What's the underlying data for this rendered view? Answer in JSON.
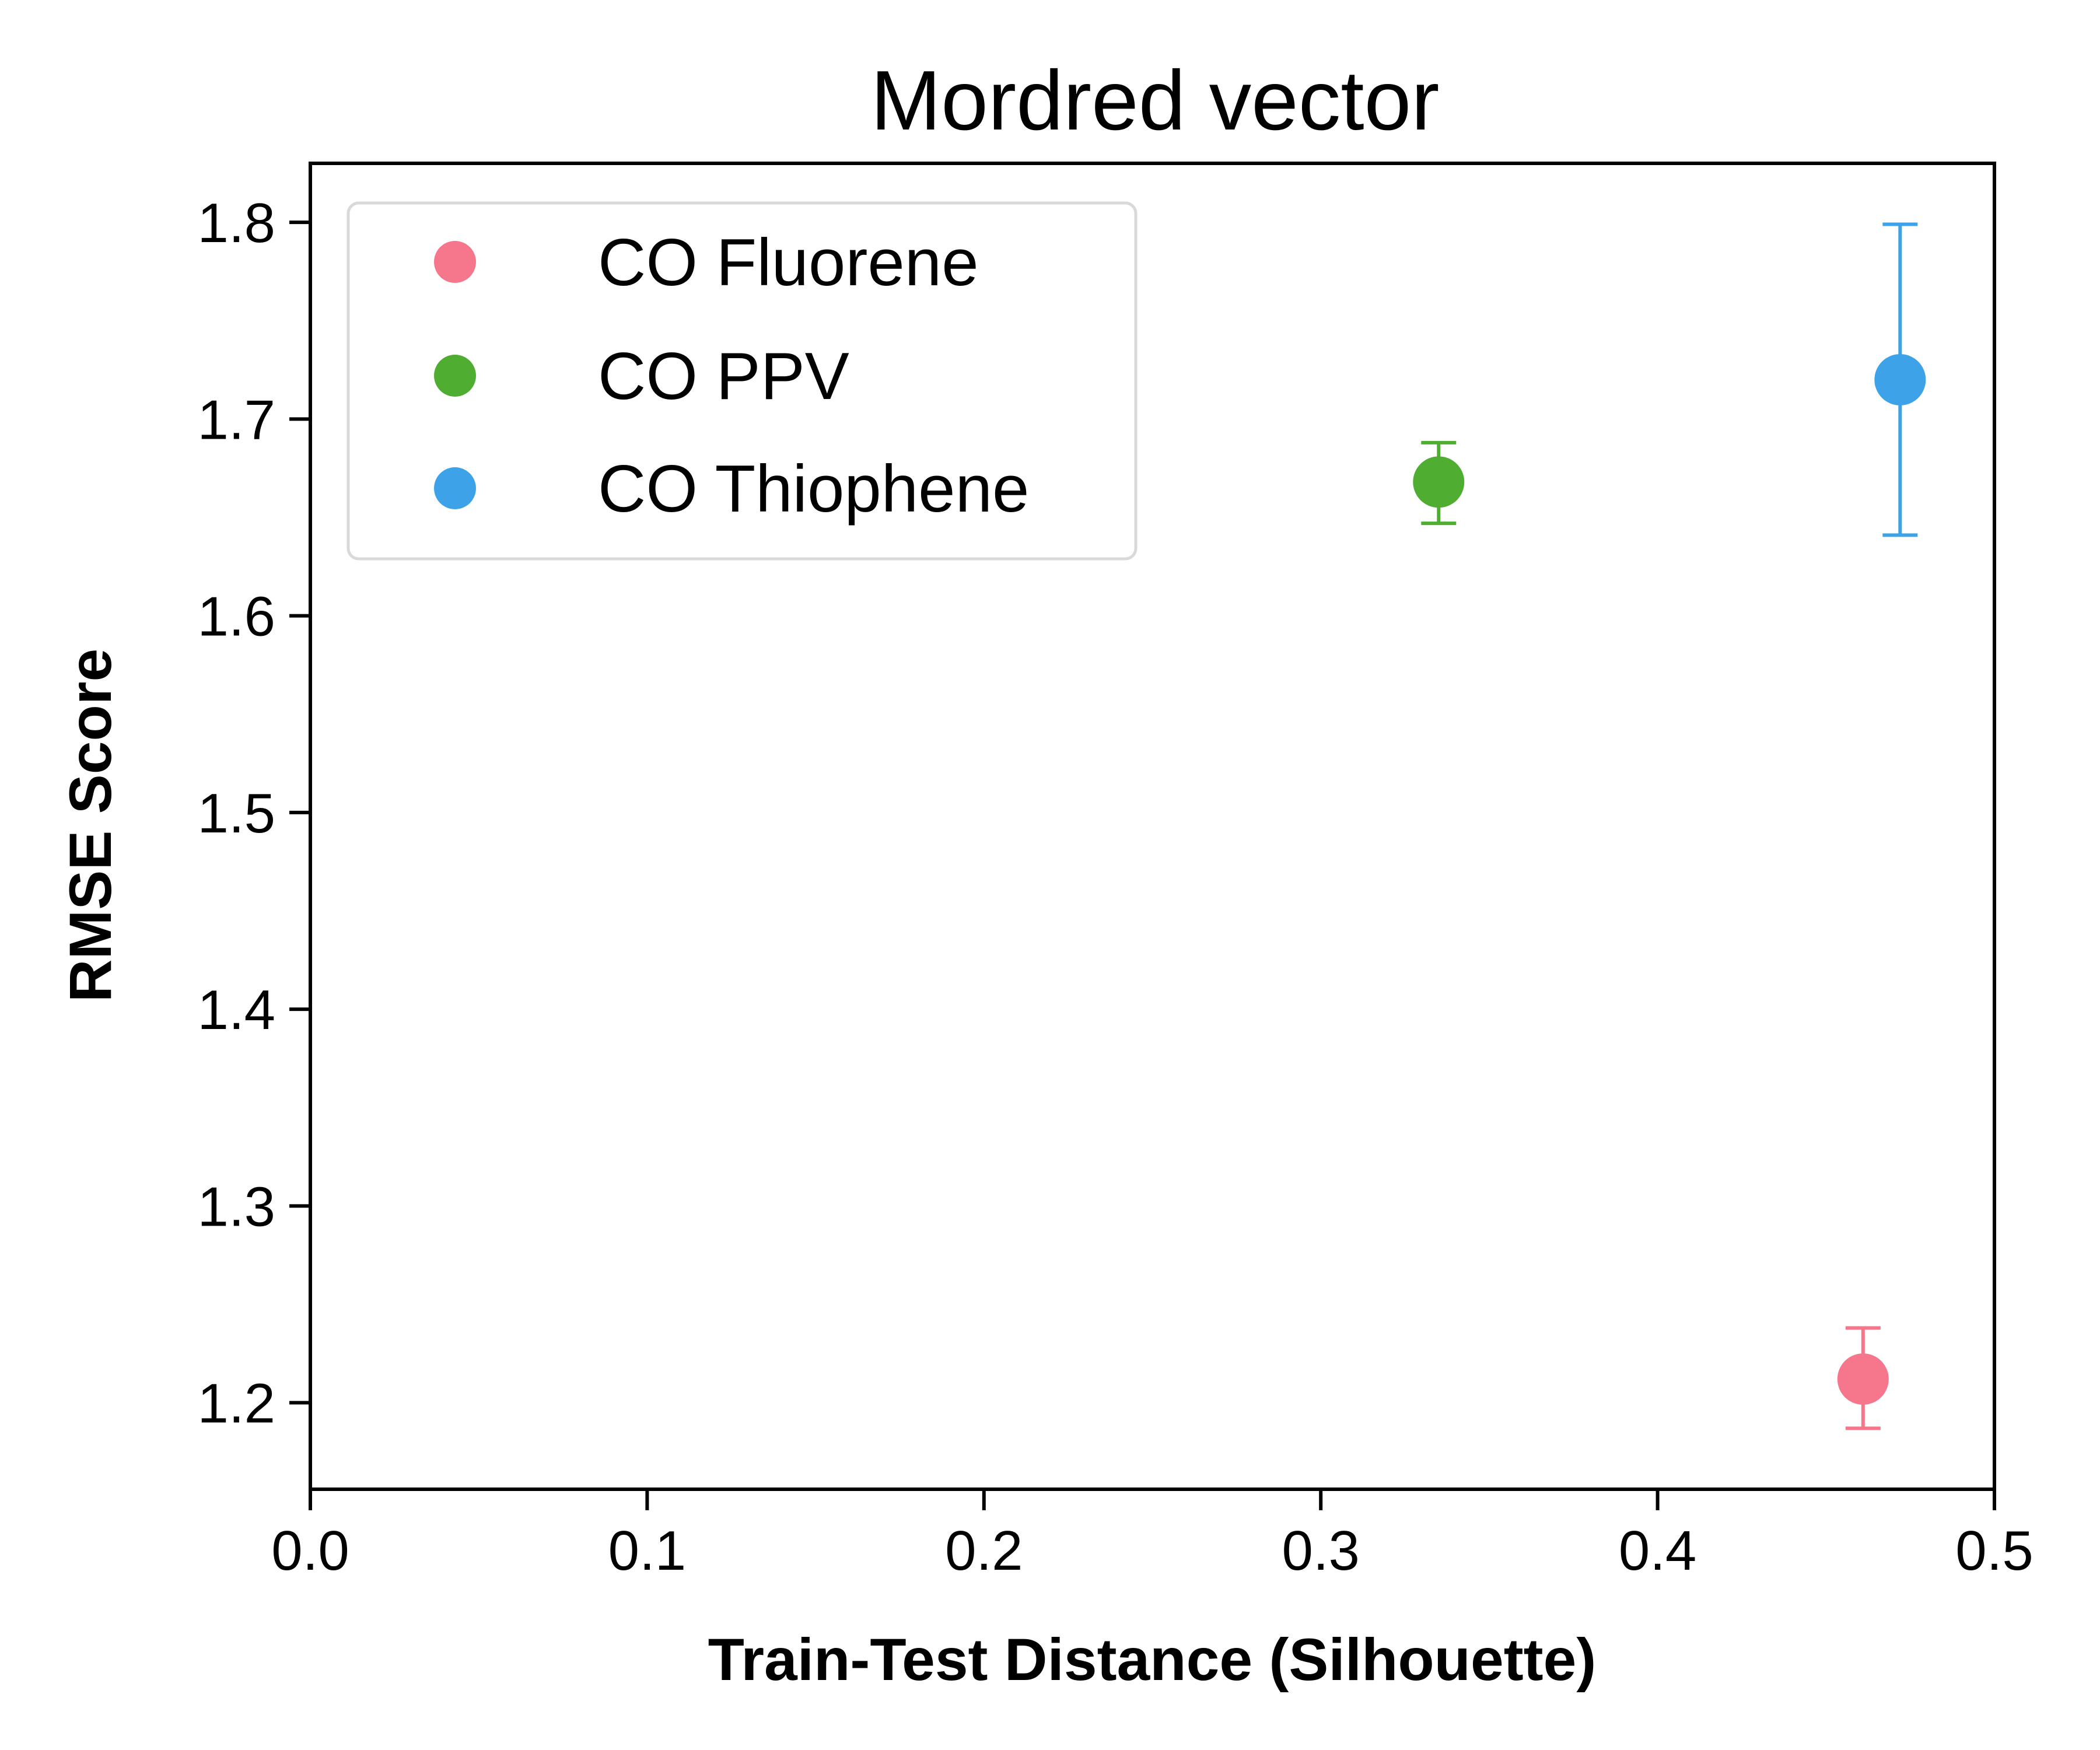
{
  "chart_data": {
    "type": "scatter",
    "title": "Mordred vector",
    "xlabel": "Train-Test Distance (Silhouette)",
    "ylabel": "RMSE Score",
    "xlim": [
      0.0,
      0.5
    ],
    "ylim": [
      1.156,
      1.83
    ],
    "xticks": [
      "0.0",
      "0.1",
      "0.2",
      "0.3",
      "0.4",
      "0.5"
    ],
    "yticks": [
      "1.2",
      "1.3",
      "1.4",
      "1.5",
      "1.6",
      "1.7",
      "1.8"
    ],
    "grid": false,
    "legend_position": "upper-left",
    "series": [
      {
        "name": "CO Fluorene",
        "color": "#f6768b",
        "points": [
          {
            "x": 0.461,
            "y": 1.212,
            "err_low": 1.187,
            "err_high": 1.238
          }
        ]
      },
      {
        "name": "CO PPV",
        "color": "#4fae31",
        "points": [
          {
            "x": 0.335,
            "y": 1.668,
            "err_low": 1.647,
            "err_high": 1.688
          }
        ]
      },
      {
        "name": "CO Thiophene",
        "color": "#3ea2e8",
        "points": [
          {
            "x": 0.472,
            "y": 1.72,
            "err_low": 1.641,
            "err_high": 1.799
          }
        ]
      }
    ]
  }
}
